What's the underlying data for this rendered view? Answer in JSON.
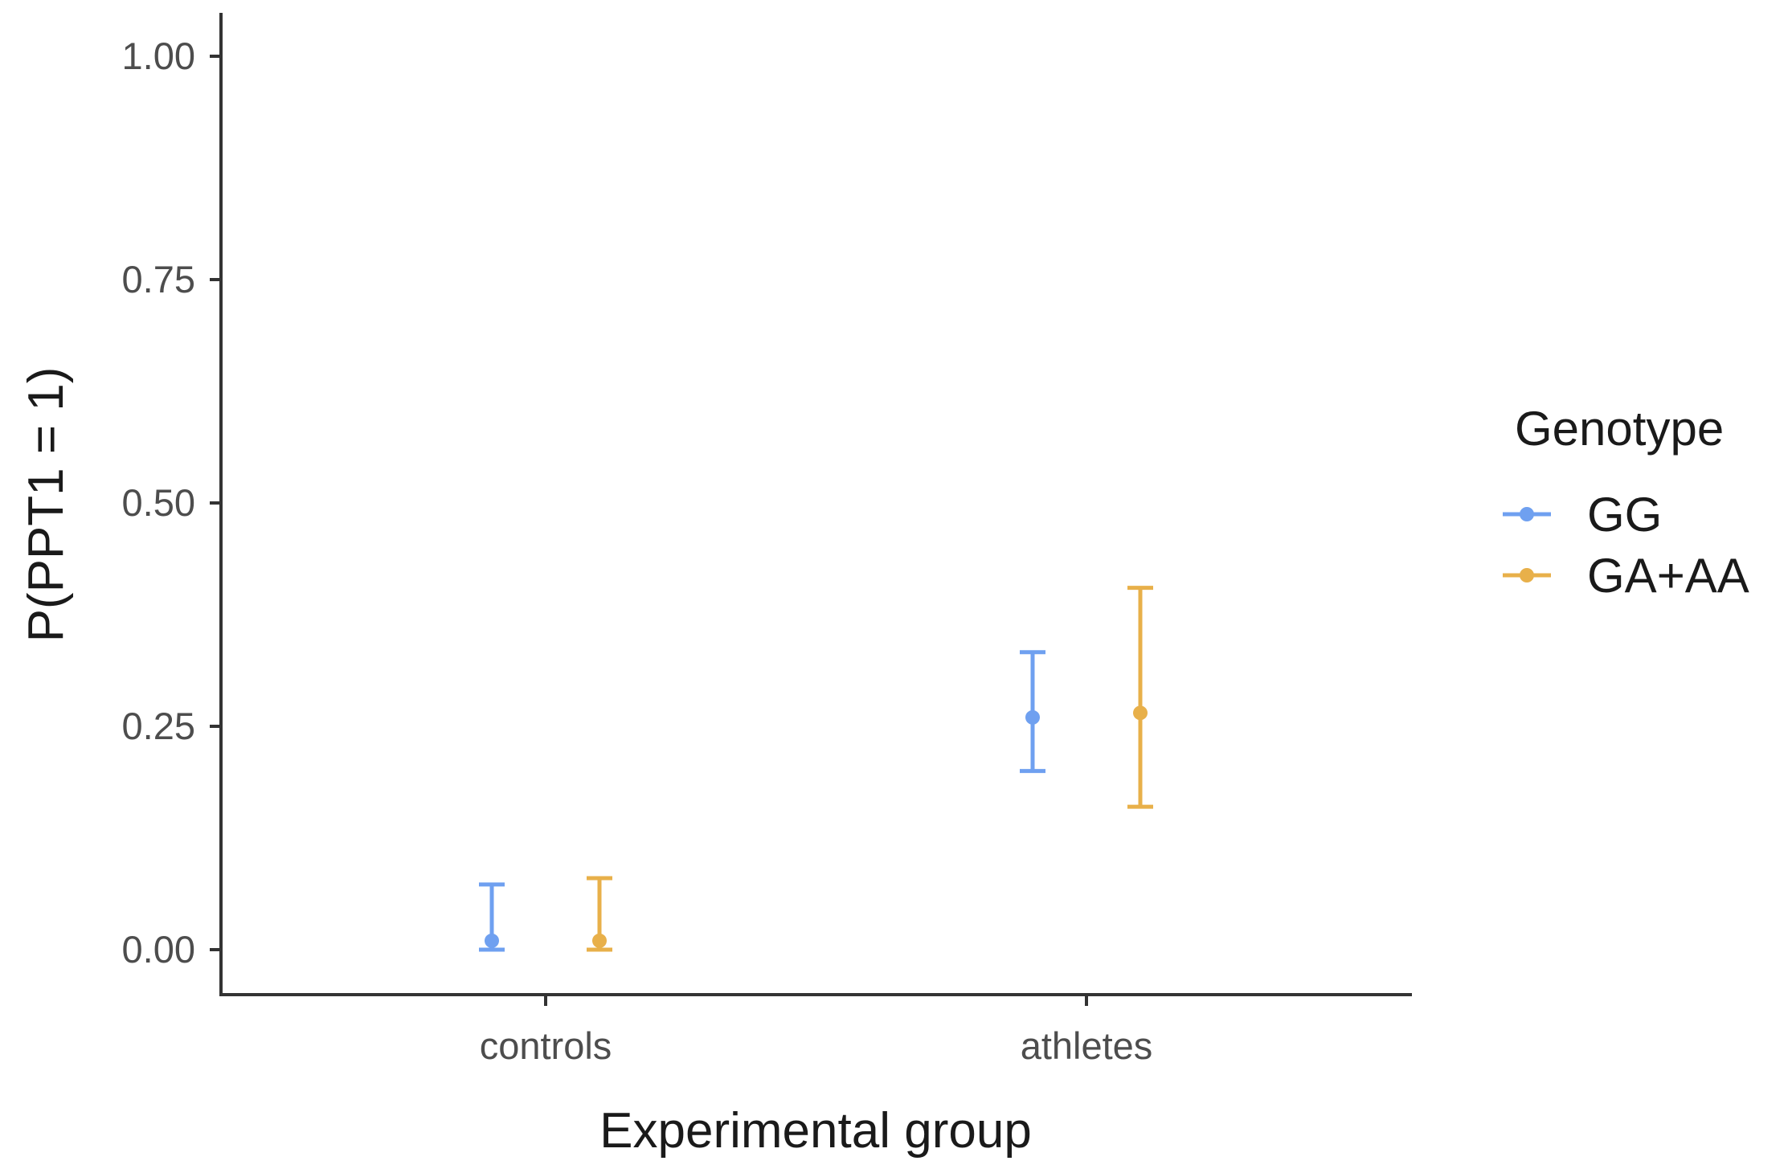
{
  "chart_data": {
    "type": "errorbar",
    "title": "",
    "xlabel": "Experimental group",
    "ylabel": "P(PPT1 = 1)",
    "ylim": [
      -0.05,
      1.05
    ],
    "yticks": [
      0.0,
      0.25,
      0.5,
      0.75,
      1.0
    ],
    "ytick_labels": [
      "0.00",
      "0.25",
      "0.50",
      "0.75",
      "1.00"
    ],
    "categories": [
      "controls",
      "athletes"
    ],
    "grid": false,
    "legend": {
      "title": "Genotype",
      "placement": "right"
    },
    "series": [
      {
        "name": "GG",
        "color": "#6fa0f0",
        "values": [
          0.01,
          0.26
        ],
        "lower": [
          0.0,
          0.2
        ],
        "upper": [
          0.073,
          0.333
        ]
      },
      {
        "name": "GA+AA",
        "color": "#e8b04a",
        "values": [
          0.01,
          0.265
        ],
        "lower": [
          0.0,
          0.16
        ],
        "upper": [
          0.08,
          0.405
        ]
      }
    ]
  }
}
